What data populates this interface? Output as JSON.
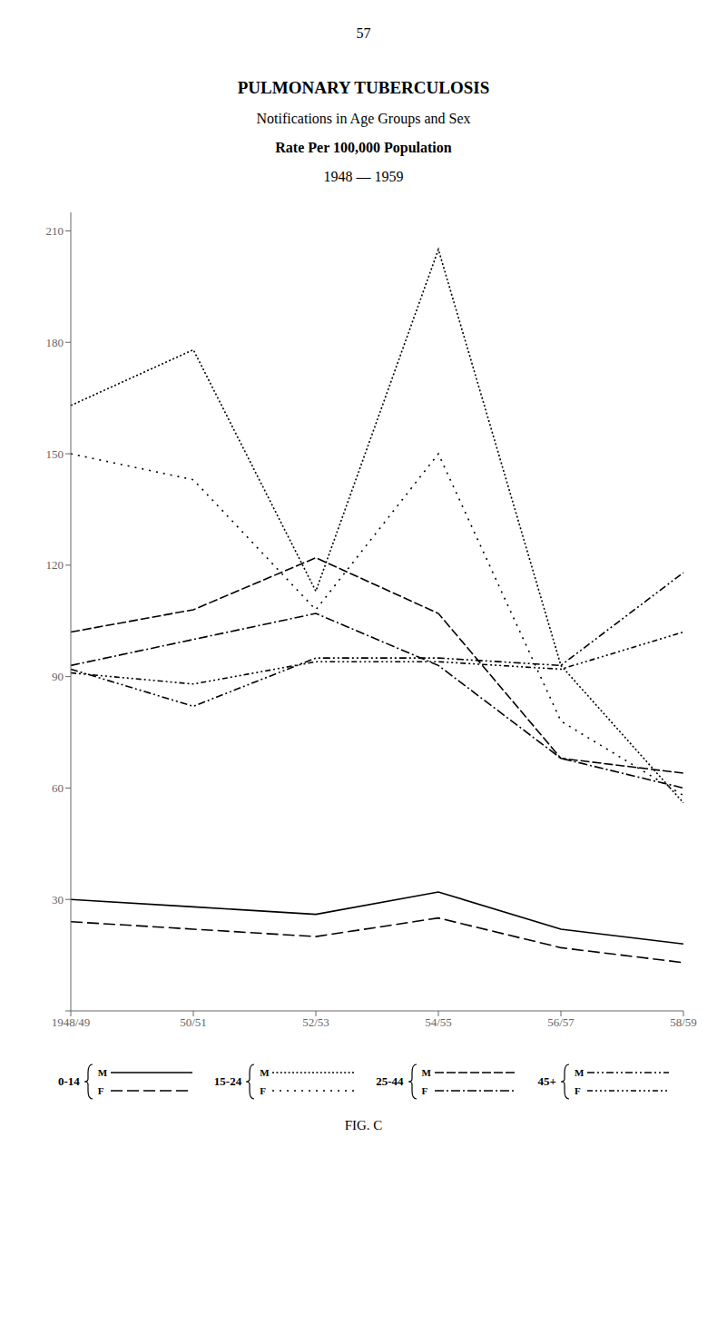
{
  "chart_data": {
    "type": "line",
    "title": "PULMONARY TUBERCULOSIS",
    "subtitles": [
      "Notifications in Age Groups and Sex",
      "Rate Per 100,000 Population",
      "1948 — 1959"
    ],
    "page_number": "57",
    "caption": "FIG. C",
    "categories": [
      "1948/49",
      "50/51",
      "52/53",
      "54/55",
      "56/57",
      "58/59"
    ],
    "series": [
      {
        "name": "M",
        "group": "0-14",
        "color": "#000000",
        "line_style": "solid",
        "values": [
          30,
          28,
          26,
          32,
          22,
          18
        ]
      },
      {
        "name": "F",
        "group": "0-14",
        "color": "#000000",
        "line_style": "long_dash",
        "values": [
          24,
          22,
          20,
          25,
          17,
          13
        ]
      },
      {
        "name": "M",
        "group": "15-24",
        "color": "#000000",
        "line_style": "dense_dot",
        "values": [
          163,
          178,
          113,
          205,
          93,
          56
        ]
      },
      {
        "name": "F",
        "group": "15-24",
        "color": "#000000",
        "line_style": "sparse_dot",
        "values": [
          150,
          143,
          108,
          150,
          78,
          58
        ]
      },
      {
        "name": "M",
        "group": "25-44",
        "color": "#000000",
        "line_style": "dash",
        "values": [
          102,
          108,
          122,
          107,
          68,
          64
        ]
      },
      {
        "name": "F",
        "group": "25-44",
        "color": "#000000",
        "line_style": "dash_dot",
        "values": [
          93,
          100,
          107,
          93,
          68,
          60
        ]
      },
      {
        "name": "M",
        "group": "45+",
        "color": "#000000",
        "line_style": "dash_dot_dot",
        "values": [
          92,
          82,
          95,
          95,
          93,
          118
        ]
      },
      {
        "name": "F",
        "group": "45+",
        "color": "#000000",
        "line_style": "dash_dot_dot_dot",
        "values": [
          91,
          88,
          94,
          94,
          92,
          102
        ]
      }
    ],
    "ylim": [
      0,
      215
    ],
    "yticks": [
      {
        "value": 0,
        "label": ""
      },
      30,
      60,
      90,
      120,
      150,
      180,
      210
    ],
    "grid": false,
    "legend": "bottom"
  }
}
